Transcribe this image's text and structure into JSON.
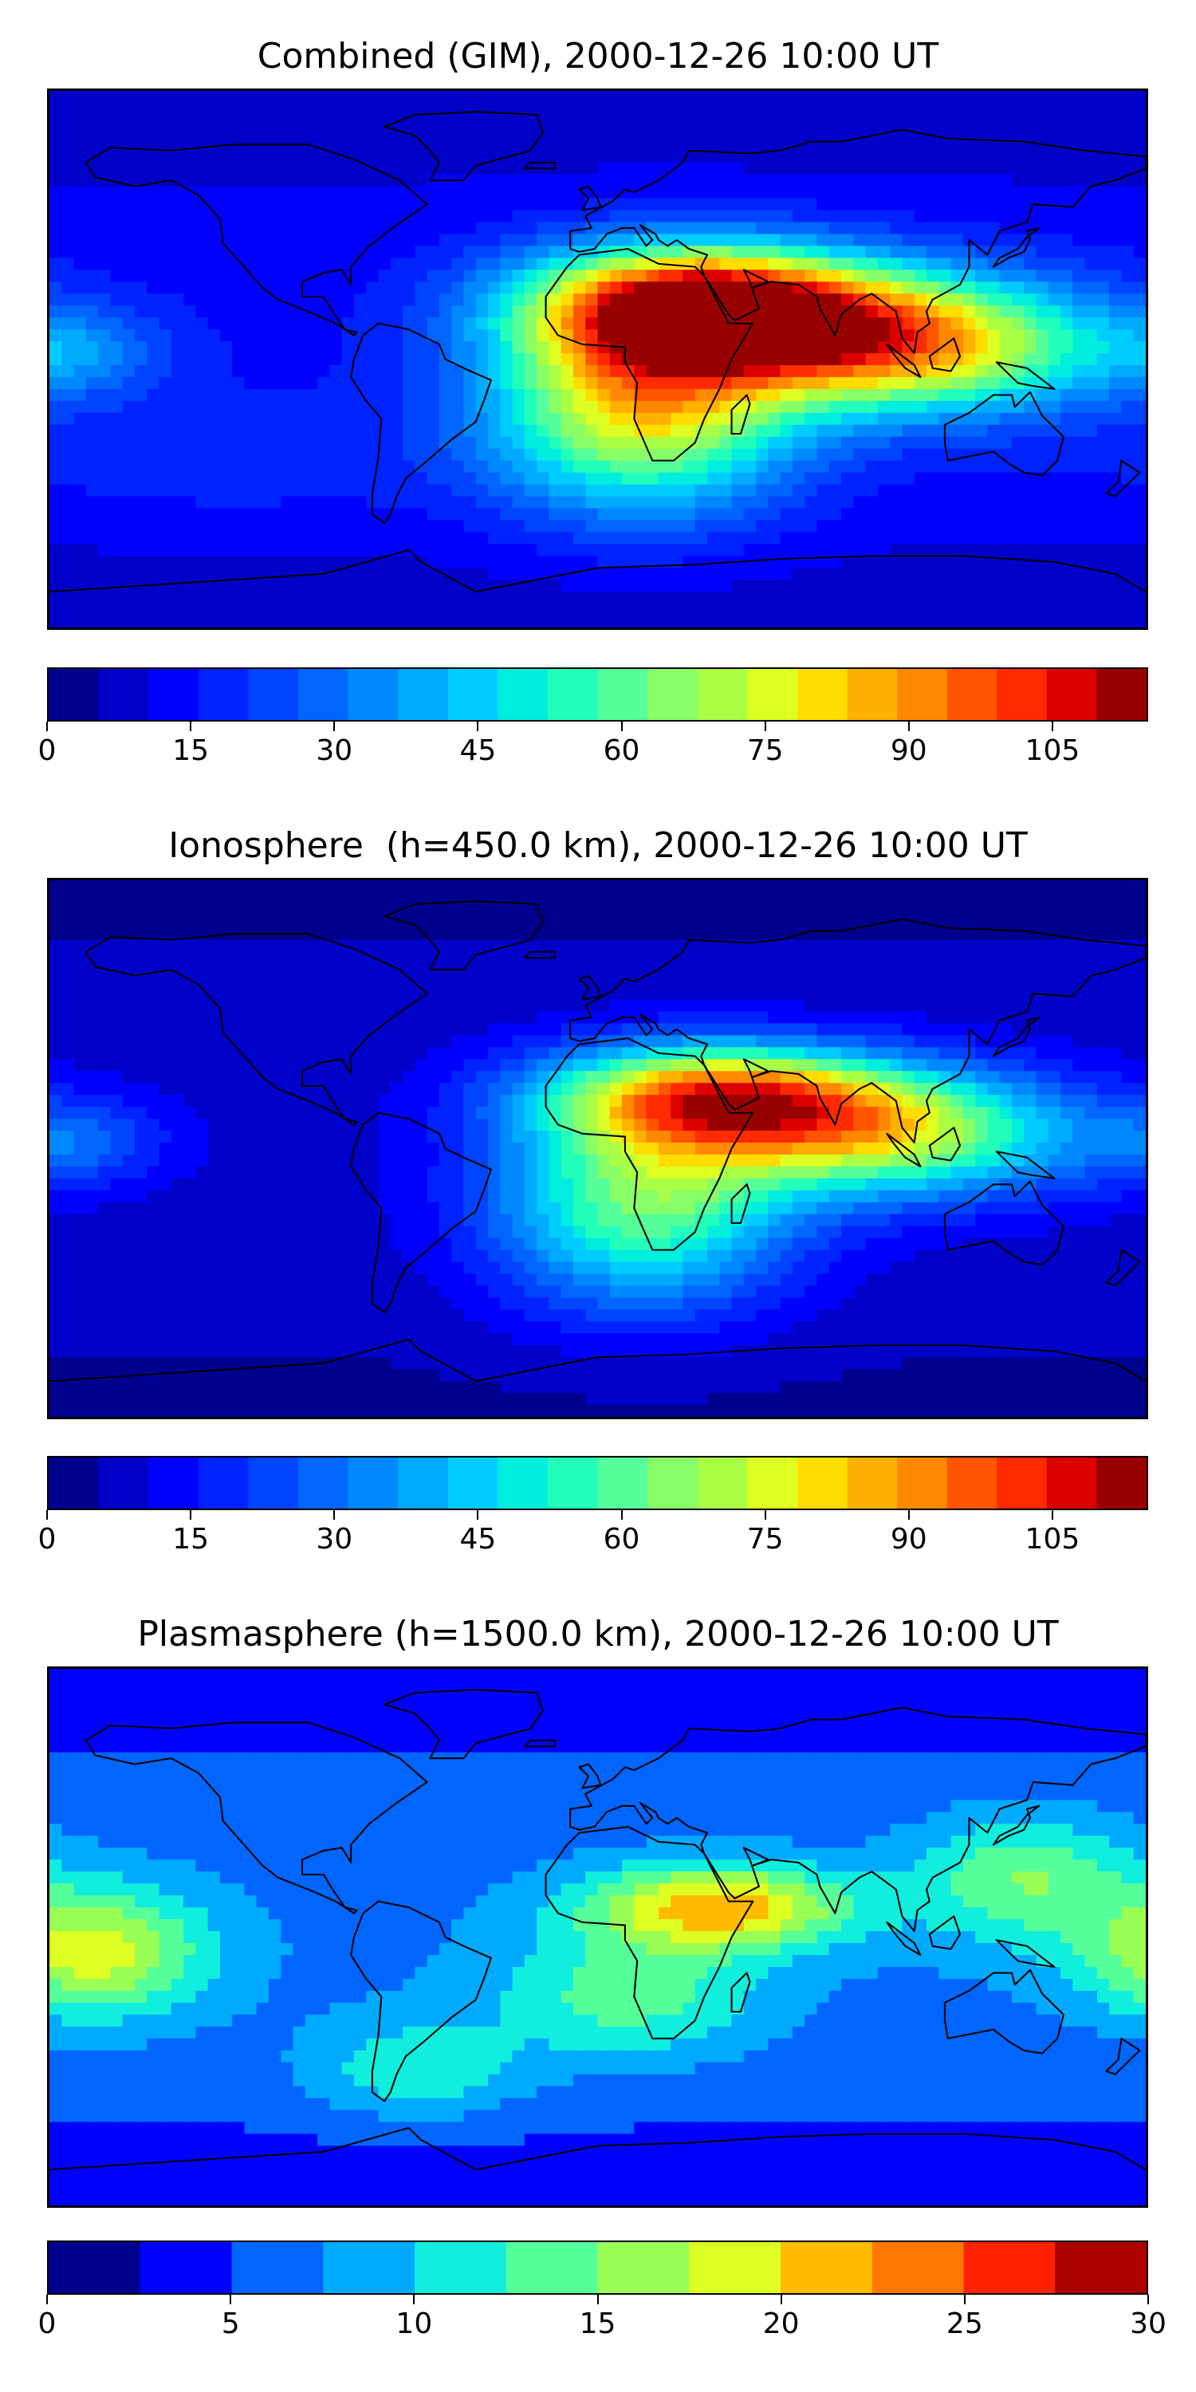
{
  "panels": [
    {
      "id": "combined",
      "title": "Combined (GIM), 2000-12-26 10:00 UT",
      "palette": [
        "#00008f",
        "#0000c8",
        "#0000ff",
        "#0022ff",
        "#0044ff",
        "#0066ff",
        "#0088ff",
        "#00aaff",
        "#00ccff",
        "#00eedd",
        "#22ffbb",
        "#55ff99",
        "#88ff66",
        "#aaff44",
        "#ddff22",
        "#ffdd00",
        "#ffb000",
        "#ff8800",
        "#ff5500",
        "#ff2a00",
        "#dd0000",
        "#990000"
      ],
      "color_ticks": [
        0,
        15,
        30,
        45,
        60,
        75,
        90,
        105
      ],
      "color_range": [
        0,
        115
      ],
      "background_level": 14,
      "peaks": [
        {
          "lon": 35,
          "lat": 18,
          "value": 105,
          "sx": 40,
          "sy": 14
        },
        {
          "lon": 100,
          "lat": 5,
          "value": 88,
          "sx": 45,
          "sy": 16
        },
        {
          "lon": 15,
          "lat": -15,
          "value": 80,
          "sx": 35,
          "sy": 25
        },
        {
          "lon": -170,
          "lat": 2,
          "value": 30,
          "sx": 20,
          "sy": 10
        },
        {
          "lon": -120,
          "lat": -35,
          "value": 20,
          "sx": 60,
          "sy": 15
        }
      ]
    },
    {
      "id": "ionosphere",
      "title": "Ionosphere  (h=450.0 km), 2000-12-26 10:00 UT",
      "palette": [
        "#00008f",
        "#0000c8",
        "#0000ff",
        "#0022ff",
        "#0044ff",
        "#0066ff",
        "#0088ff",
        "#00aaff",
        "#00ccff",
        "#00eedd",
        "#22ffbb",
        "#55ff99",
        "#88ff66",
        "#aaff44",
        "#ddff22",
        "#ffdd00",
        "#ffb000",
        "#ff8800",
        "#ff5500",
        "#ff2a00",
        "#dd0000",
        "#990000"
      ],
      "color_ticks": [
        0,
        15,
        30,
        45,
        60,
        75,
        90,
        105
      ],
      "color_range": [
        0,
        115
      ],
      "background_level": 8,
      "peaks": [
        {
          "lon": 40,
          "lat": 18,
          "value": 78,
          "sx": 40,
          "sy": 12
        },
        {
          "lon": 95,
          "lat": 5,
          "value": 70,
          "sx": 45,
          "sy": 15
        },
        {
          "lon": 15,
          "lat": -18,
          "value": 62,
          "sx": 35,
          "sy": 25
        },
        {
          "lon": -170,
          "lat": 2,
          "value": 25,
          "sx": 20,
          "sy": 10
        }
      ]
    },
    {
      "id": "plasmasphere",
      "title": "Plasmasphere (h=1500.0 km), 2000-12-26 10:00 UT",
      "palette": [
        "#00008f",
        "#0000ff",
        "#0066ff",
        "#00aaff",
        "#11eedd",
        "#55ff99",
        "#99ff55",
        "#ddff22",
        "#ffbb00",
        "#ff7700",
        "#ff2200",
        "#aa0000"
      ],
      "color_ticks": [
        0,
        5,
        10,
        15,
        20,
        25,
        30
      ],
      "color_range": [
        0,
        30
      ],
      "background_level": 7,
      "peaks": [
        {
          "lon": 40,
          "lat": 10,
          "value": 22,
          "sx": 30,
          "sy": 10
        },
        {
          "lon": -165,
          "lat": -5,
          "value": 19,
          "sx": 25,
          "sy": 15
        },
        {
          "lon": 140,
          "lat": 20,
          "value": 15,
          "sx": 25,
          "sy": 15
        },
        {
          "lon": -60,
          "lat": -45,
          "value": 13,
          "sx": 25,
          "sy": 12
        },
        {
          "lon": 10,
          "lat": -20,
          "value": 14,
          "sx": 30,
          "sy": 15
        }
      ]
    }
  ]
}
